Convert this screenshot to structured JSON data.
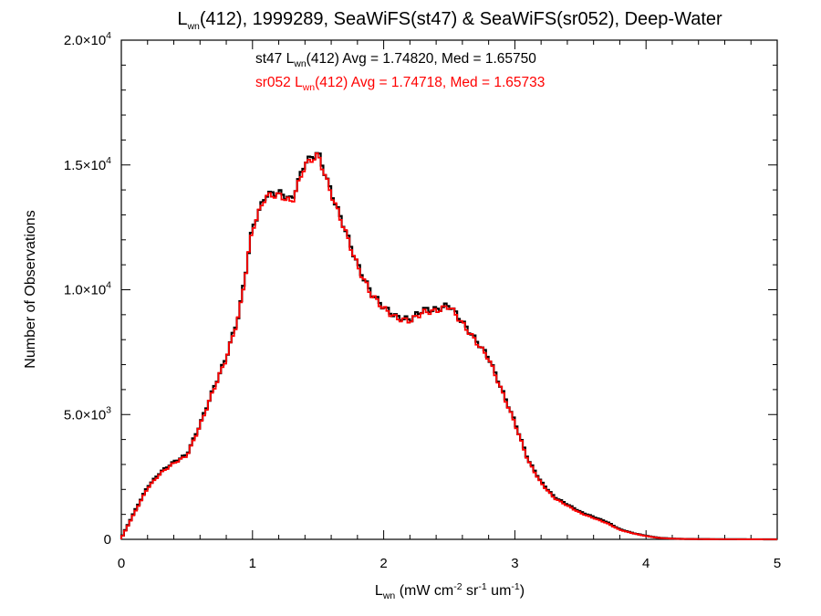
{
  "chart_data": {
    "type": "line",
    "title_parts": [
      "L",
      "wn",
      "(412), 1999289, SeaWiFS(st47) & SeaWiFS(sr052), Deep-Water"
    ],
    "xlabel_parts": [
      "L",
      "wn",
      " (mW cm",
      "-2",
      " sr",
      "-1",
      " um",
      "-1",
      ")"
    ],
    "ylabel": "Number of Observations",
    "xlim": [
      0,
      5
    ],
    "ylim": [
      0,
      20000
    ],
    "x_ticks": [
      "0",
      "1",
      "2",
      "3",
      "4",
      "5"
    ],
    "y_ticks": [
      {
        "value": 0,
        "mantissa": "0",
        "exponent": ""
      },
      {
        "value": 5000,
        "mantissa": "5.0×10",
        "exponent": "3"
      },
      {
        "value": 10000,
        "mantissa": "1.0×10",
        "exponent": "4"
      },
      {
        "value": 15000,
        "mantissa": "1.5×10",
        "exponent": "4"
      },
      {
        "value": 20000,
        "mantissa": "2.0×10",
        "exponent": "4"
      }
    ],
    "annotations": [
      {
        "parts": [
          "st47 L",
          "wn",
          "(412) Avg = 1.74820, Med = 1.65750"
        ],
        "color": "#000000"
      },
      {
        "parts": [
          "sr052 L",
          "wn",
          "(412) Avg = 1.74718, Med = 1.65733"
        ],
        "color": "#ff0000"
      }
    ],
    "bin_width": 0.02,
    "series": [
      {
        "label": "st47",
        "color": "#000000",
        "x": [
          0.0,
          0.1,
          0.2,
          0.3,
          0.4,
          0.5,
          0.6,
          0.7,
          0.8,
          0.9,
          1.0,
          1.1,
          1.2,
          1.3,
          1.4,
          1.5,
          1.6,
          1.7,
          1.8,
          1.9,
          2.0,
          2.1,
          2.2,
          2.3,
          2.4,
          2.5,
          2.6,
          2.7,
          2.8,
          2.9,
          3.0,
          3.1,
          3.2,
          3.3,
          3.4,
          3.5,
          3.6,
          3.7,
          3.8,
          3.9,
          4.0,
          4.1,
          4.2,
          4.3,
          4.4,
          4.6,
          5.0
        ],
        "y": [
          50,
          1100,
          2100,
          2700,
          3100,
          3400,
          4600,
          6000,
          7300,
          9100,
          12500,
          13800,
          13900,
          13600,
          15100,
          15500,
          13900,
          12500,
          11000,
          9900,
          9300,
          8900,
          8800,
          9200,
          9200,
          9400,
          8700,
          8000,
          7300,
          6000,
          4700,
          3200,
          2300,
          1700,
          1400,
          1100,
          900,
          700,
          400,
          250,
          140,
          60,
          30,
          15,
          10,
          5,
          0
        ]
      },
      {
        "label": "sr052",
        "color": "#ff0000",
        "x": [
          0.0,
          0.1,
          0.2,
          0.3,
          0.4,
          0.5,
          0.6,
          0.7,
          0.8,
          0.9,
          1.0,
          1.1,
          1.2,
          1.3,
          1.4,
          1.5,
          1.6,
          1.7,
          1.8,
          1.9,
          2.0,
          2.1,
          2.2,
          2.3,
          2.4,
          2.5,
          2.6,
          2.7,
          2.8,
          2.9,
          3.0,
          3.1,
          3.2,
          3.3,
          3.4,
          3.5,
          3.6,
          3.7,
          3.8,
          3.9,
          4.0,
          4.1,
          4.2,
          4.3,
          4.4,
          4.6,
          5.0
        ],
        "y": [
          40,
          1050,
          2050,
          2650,
          3050,
          3350,
          4550,
          5950,
          7250,
          9050,
          12450,
          13750,
          13800,
          13500,
          15000,
          15400,
          13850,
          12450,
          10950,
          9850,
          9250,
          8850,
          8750,
          9100,
          9150,
          9350,
          8650,
          7950,
          7250,
          5950,
          4650,
          3150,
          2250,
          1650,
          1350,
          1050,
          850,
          650,
          380,
          240,
          130,
          55,
          28,
          14,
          9,
          4,
          0
        ]
      }
    ]
  }
}
